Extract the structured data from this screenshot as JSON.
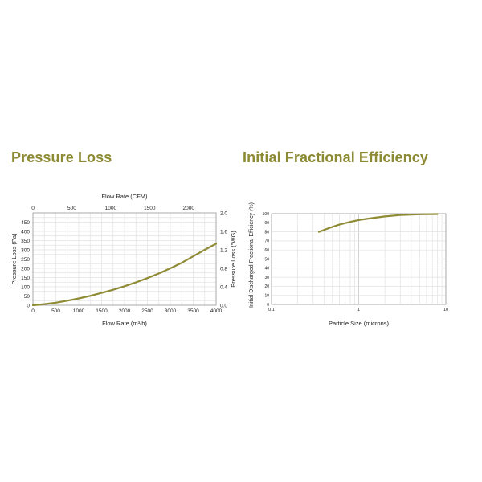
{
  "page": {
    "left_title": "Pressure Loss",
    "right_title": "Initial Fractional Efficiency",
    "curve_color": "#8f8b35",
    "title_color": "#8c8a32"
  },
  "chart_data": [
    {
      "type": "line",
      "title": "Pressure Loss",
      "xlabel": "Flow Rate (m³/h)",
      "x2label": "Flow Rate (CFM)",
      "ylabel": "Pressure Loss (Pa)",
      "y2label": "Pressure Loss (\"WG)",
      "xlim": [
        0,
        4000
      ],
      "ylim": [
        0,
        500
      ],
      "x2lim": [
        0,
        2354
      ],
      "y2lim": [
        0,
        2.0
      ],
      "xticks": [
        "0",
        "500",
        "1000",
        "1500",
        "2000",
        "2500",
        "3000",
        "3500",
        "4000"
      ],
      "yticks": [
        "0",
        "50",
        "100",
        "150",
        "200",
        "250",
        "300",
        "350",
        "400",
        "450"
      ],
      "x2ticks": [
        "0",
        "500",
        "1000",
        "1500",
        "2000"
      ],
      "y2ticks": [
        "0.0",
        "0.4",
        "0.8",
        "1.2",
        "1.6",
        "2.0"
      ],
      "grid": true,
      "series": [
        {
          "x": [
            0,
            250,
            500,
            750,
            1000,
            1250,
            1500,
            1750,
            2000,
            2250,
            2500,
            2750,
            3000,
            3250,
            3500,
            3750,
            4000
          ],
          "y": [
            0,
            6,
            14,
            25,
            37,
            51,
            67,
            84,
            103,
            124,
            147,
            172,
            200,
            230,
            265,
            300,
            333
          ]
        }
      ]
    },
    {
      "type": "line",
      "title": "Initial Fractional Efficiency",
      "xlabel": "Particle Size (microns)",
      "ylabel": "Initial Discharged Fractional Efficiency (%)",
      "xscale": "log",
      "xlim": [
        0.1,
        10
      ],
      "ylim": [
        0,
        100
      ],
      "xticks": [
        "0.1",
        "1",
        "10"
      ],
      "yticks": [
        "0",
        "10",
        "20",
        "30",
        "40",
        "50",
        "60",
        "70",
        "80",
        "90",
        "100"
      ],
      "grid": true,
      "series": [
        {
          "x": [
            0.35,
            0.45,
            0.6,
            0.8,
            1.0,
            1.5,
            2.0,
            3.0,
            5.0,
            8.0
          ],
          "y": [
            80,
            84,
            88,
            91,
            93,
            95.5,
            97,
            98.5,
            99.3,
            99.6
          ]
        }
      ]
    }
  ]
}
